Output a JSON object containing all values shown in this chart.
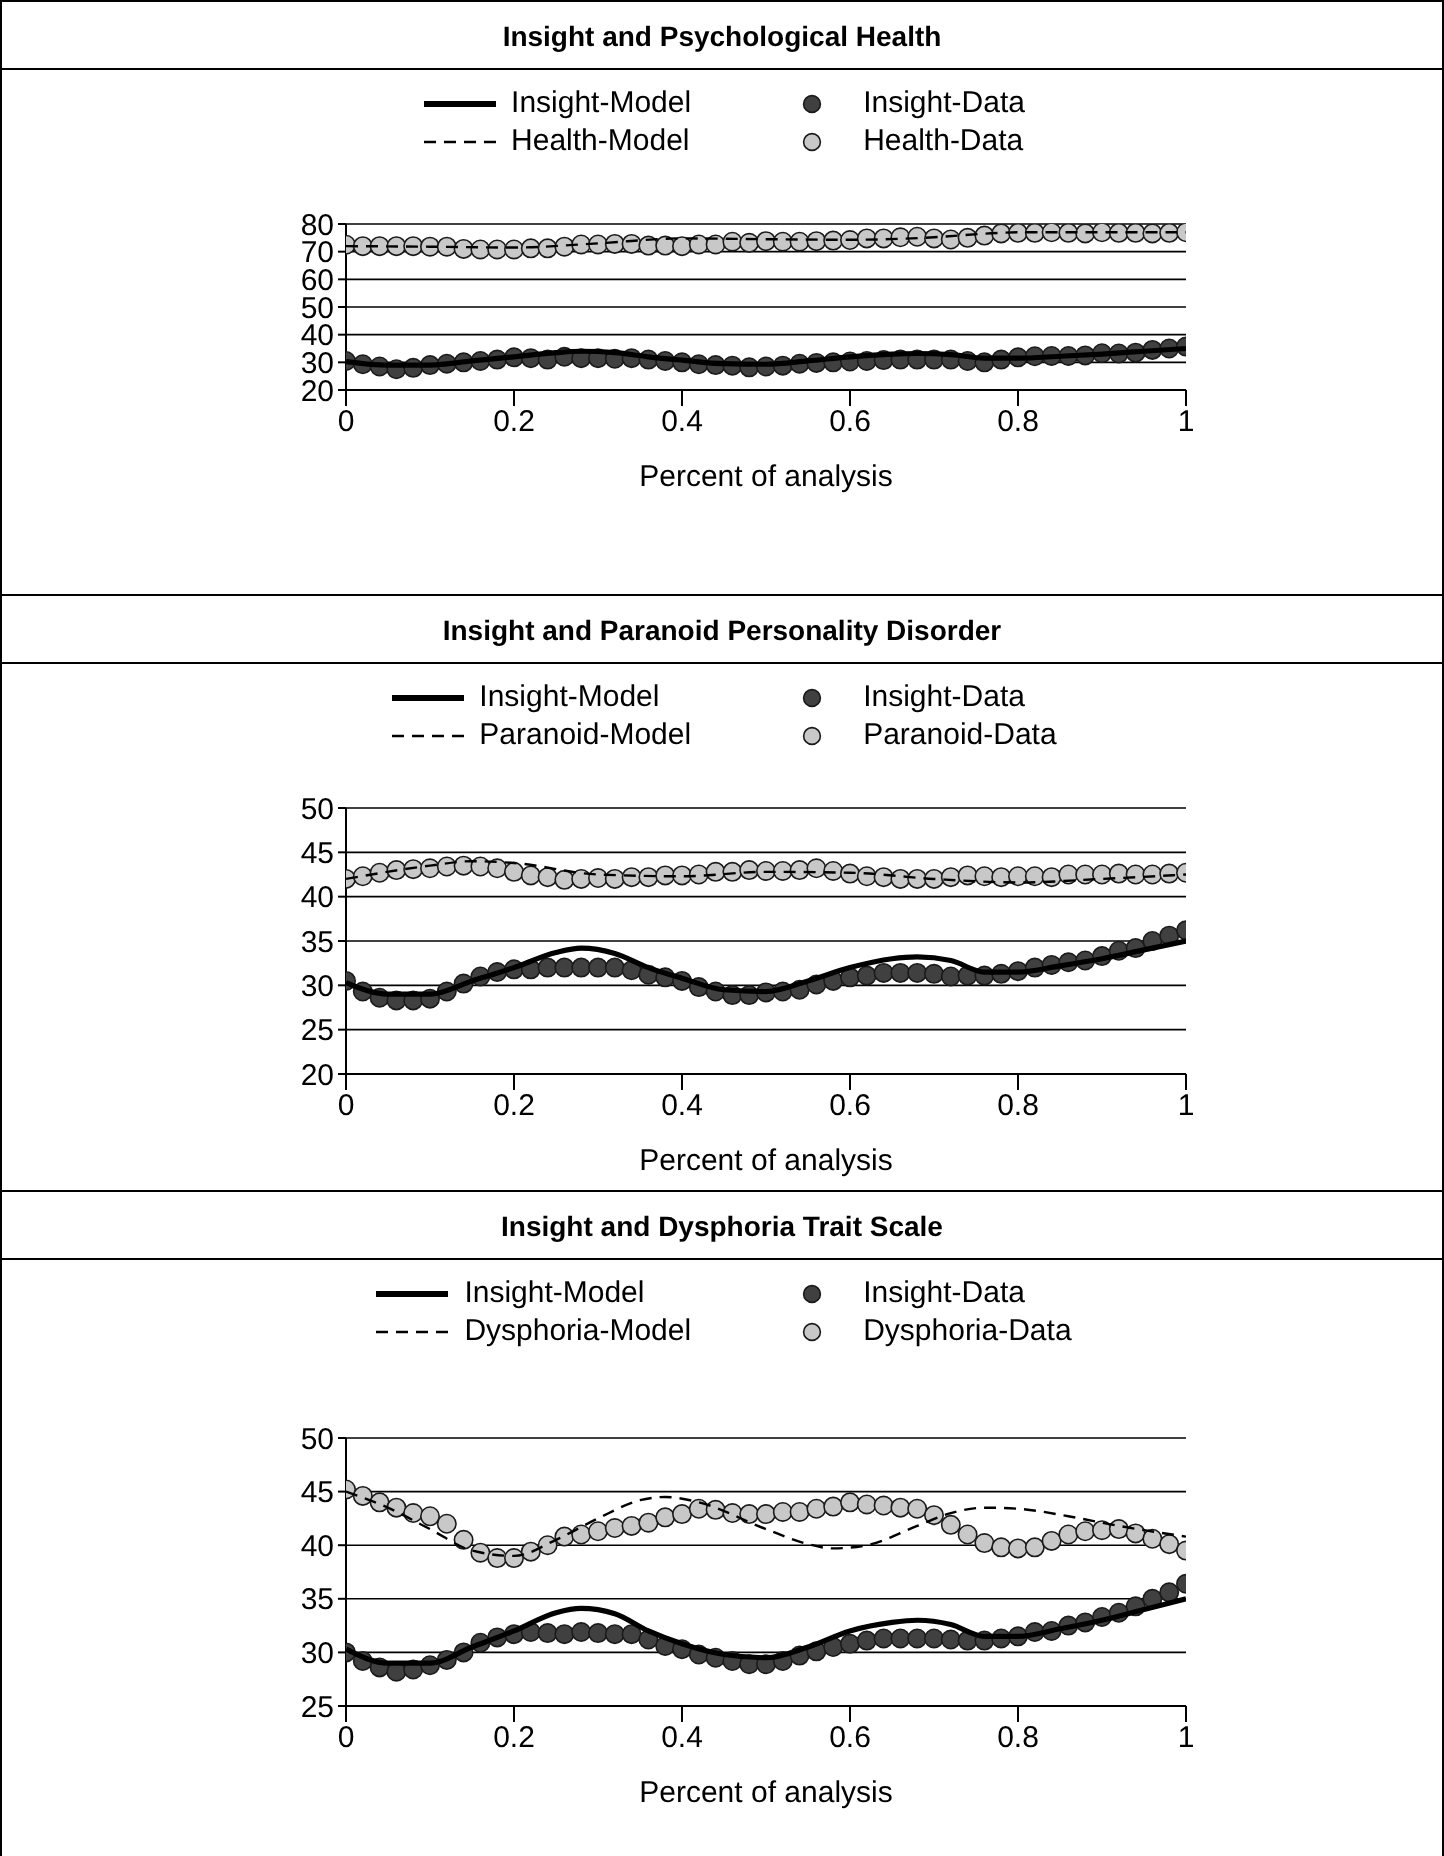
{
  "chart_data": [
    {
      "type": "line",
      "title": "Insight and Psychological Health",
      "xlabel": "Percent of analysis",
      "xlim": [
        0,
        1
      ],
      "xticks": [
        0,
        0.2,
        0.4,
        0.6,
        0.8,
        1
      ],
      "ylim": [
        20,
        80
      ],
      "yticks": [
        20,
        30,
        40,
        50,
        60,
        70,
        80
      ],
      "grid": "y",
      "legend": "top",
      "series": [
        {
          "name": "Insight-Model",
          "type": "line",
          "color": "#000000",
          "line_style": "solid",
          "marker": "none",
          "x": [
            0,
            0.05,
            0.1,
            0.15,
            0.2,
            0.25,
            0.28,
            0.32,
            0.36,
            0.4,
            0.45,
            0.5,
            0.55,
            0.6,
            0.65,
            0.68,
            0.72,
            0.76,
            0.8,
            0.85,
            0.9,
            0.95,
            1
          ],
          "values": [
            30.3,
            29,
            29,
            30.5,
            32,
            33.5,
            34,
            33.5,
            32,
            30.8,
            29.5,
            29.3,
            30.5,
            32,
            33,
            33.2,
            32.8,
            31.5,
            31.5,
            32.2,
            33,
            34,
            35
          ]
        },
        {
          "name": "Insight-Data",
          "type": "scatter",
          "color": "#404040",
          "marker": "circle",
          "x": [
            0,
            0.02,
            0.04,
            0.06,
            0.08,
            0.1,
            0.12,
            0.14,
            0.16,
            0.18,
            0.2,
            0.22,
            0.24,
            0.26,
            0.28,
            0.3,
            0.32,
            0.34,
            0.36,
            0.38,
            0.4,
            0.42,
            0.44,
            0.46,
            0.48,
            0.5,
            0.52,
            0.54,
            0.56,
            0.58,
            0.6,
            0.62,
            0.64,
            0.66,
            0.68,
            0.7,
            0.72,
            0.74,
            0.76,
            0.78,
            0.8,
            0.82,
            0.84,
            0.86,
            0.88,
            0.9,
            0.92,
            0.94,
            0.96,
            0.98,
            1
          ],
          "values": [
            30.5,
            29.3,
            28.5,
            27.5,
            28,
            29,
            29.5,
            30,
            30.5,
            31,
            31.8,
            31.5,
            31,
            32,
            31.5,
            31.5,
            31.3,
            31.5,
            31,
            30.5,
            30,
            29.3,
            29,
            28.8,
            28.2,
            28.5,
            28.8,
            29.5,
            29.8,
            30,
            30.3,
            30.5,
            30.8,
            31,
            31,
            31,
            31,
            30.5,
            30,
            31,
            31.8,
            32.2,
            32.3,
            32.3,
            32.5,
            33.3,
            33.2,
            33.5,
            34.5,
            35,
            35.7
          ]
        },
        {
          "name": "Health-Model",
          "type": "line",
          "color": "#000000",
          "line_style": "dashed",
          "marker": "none",
          "x": [
            0,
            0.1,
            0.2,
            0.3,
            0.4,
            0.5,
            0.6,
            0.7,
            0.76,
            0.8,
            0.9,
            1
          ],
          "values": [
            72,
            71.8,
            71.5,
            73,
            74.8,
            74.5,
            74.3,
            75.2,
            76.5,
            77,
            77,
            77
          ]
        },
        {
          "name": "Health-Data",
          "type": "scatter",
          "color": "#c8c8c8",
          "marker": "circle",
          "x": [
            0,
            0.02,
            0.04,
            0.06,
            0.08,
            0.1,
            0.12,
            0.14,
            0.16,
            0.18,
            0.2,
            0.22,
            0.24,
            0.26,
            0.28,
            0.3,
            0.32,
            0.34,
            0.36,
            0.38,
            0.4,
            0.42,
            0.44,
            0.46,
            0.48,
            0.5,
            0.52,
            0.54,
            0.56,
            0.58,
            0.6,
            0.62,
            0.64,
            0.66,
            0.68,
            0.7,
            0.72,
            0.74,
            0.76,
            0.78,
            0.8,
            0.82,
            0.84,
            0.86,
            0.88,
            0.9,
            0.92,
            0.94,
            0.96,
            0.98,
            1
          ],
          "values": [
            72.5,
            72,
            72,
            72,
            72,
            71.8,
            71.8,
            71,
            70.8,
            70.8,
            70.8,
            71.2,
            71.2,
            71.8,
            72.6,
            72.6,
            72.8,
            72.8,
            72.2,
            72.2,
            72,
            72.6,
            72.6,
            73.6,
            73.2,
            73.8,
            73.6,
            73.6,
            73.8,
            74,
            74.2,
            74.8,
            74.8,
            75.2,
            75.4,
            74.8,
            74.4,
            75,
            75.8,
            76.6,
            76.8,
            76.8,
            77,
            76.8,
            76.6,
            77,
            76.8,
            76.8,
            76.6,
            76.8,
            77
          ]
        }
      ]
    },
    {
      "type": "line",
      "title": "Insight and Paranoid Personality Disorder",
      "xlabel": "Percent of analysis",
      "xlim": [
        0,
        1
      ],
      "xticks": [
        0,
        0.2,
        0.4,
        0.6,
        0.8,
        1
      ],
      "ylim": [
        20,
        50
      ],
      "yticks": [
        20,
        25,
        30,
        35,
        40,
        45,
        50
      ],
      "grid": "y",
      "legend": "top",
      "series": [
        {
          "name": "Insight-Model",
          "type": "line",
          "color": "#000000",
          "line_style": "solid",
          "marker": "none",
          "x": [
            0,
            0.05,
            0.1,
            0.15,
            0.2,
            0.25,
            0.28,
            0.32,
            0.36,
            0.4,
            0.45,
            0.5,
            0.55,
            0.6,
            0.65,
            0.68,
            0.72,
            0.76,
            0.8,
            0.85,
            0.9,
            0.95,
            1
          ],
          "values": [
            30.3,
            29,
            29,
            30.5,
            32,
            33.7,
            34.2,
            33.6,
            32,
            30.8,
            29.5,
            29.3,
            30.5,
            32,
            33,
            33.2,
            32.8,
            31.5,
            31.5,
            32.2,
            33,
            34,
            35
          ]
        },
        {
          "name": "Insight-Data",
          "type": "scatter",
          "color": "#404040",
          "marker": "circle",
          "x": [
            0,
            0.02,
            0.04,
            0.06,
            0.08,
            0.1,
            0.12,
            0.14,
            0.16,
            0.18,
            0.2,
            0.22,
            0.24,
            0.26,
            0.28,
            0.3,
            0.32,
            0.34,
            0.36,
            0.38,
            0.4,
            0.42,
            0.44,
            0.46,
            0.48,
            0.5,
            0.52,
            0.54,
            0.56,
            0.58,
            0.6,
            0.62,
            0.64,
            0.66,
            0.68,
            0.7,
            0.72,
            0.74,
            0.76,
            0.78,
            0.8,
            0.82,
            0.84,
            0.86,
            0.88,
            0.9,
            0.92,
            0.94,
            0.96,
            0.98,
            1
          ],
          "values": [
            30.5,
            29.3,
            28.6,
            28.3,
            28.3,
            28.5,
            29.3,
            30.2,
            31,
            31.5,
            31.8,
            31.8,
            32,
            32,
            32,
            32,
            32,
            31.7,
            31.2,
            30.9,
            30.5,
            29.8,
            29.3,
            28.9,
            28.9,
            29.2,
            29.3,
            29.5,
            30.1,
            30.5,
            30.9,
            31.1,
            31.4,
            31.4,
            31.4,
            31.3,
            31,
            31.1,
            31.1,
            31.3,
            31.6,
            32,
            32.3,
            32.6,
            32.8,
            33.3,
            33.9,
            34.2,
            35,
            35.6,
            36.2
          ]
        },
        {
          "name": "Paranoid-Model",
          "type": "line",
          "color": "#000000",
          "line_style": "dashed",
          "marker": "none",
          "x": [
            0,
            0.1,
            0.15,
            0.2,
            0.3,
            0.4,
            0.5,
            0.6,
            0.7,
            0.8,
            0.9,
            1
          ],
          "values": [
            42,
            43.5,
            44,
            43.8,
            42.5,
            42.3,
            42.8,
            42.7,
            42,
            41.6,
            42,
            42.5
          ]
        },
        {
          "name": "Paranoid-Data",
          "type": "scatter",
          "color": "#c8c8c8",
          "marker": "circle",
          "x": [
            0,
            0.02,
            0.04,
            0.06,
            0.08,
            0.1,
            0.12,
            0.14,
            0.16,
            0.18,
            0.2,
            0.22,
            0.24,
            0.26,
            0.28,
            0.3,
            0.32,
            0.34,
            0.36,
            0.38,
            0.4,
            0.42,
            0.44,
            0.46,
            0.48,
            0.5,
            0.52,
            0.54,
            0.56,
            0.58,
            0.6,
            0.62,
            0.64,
            0.66,
            0.68,
            0.7,
            0.72,
            0.74,
            0.76,
            0.78,
            0.8,
            0.82,
            0.84,
            0.86,
            0.88,
            0.9,
            0.92,
            0.94,
            0.96,
            0.98,
            1
          ],
          "values": [
            42,
            42.3,
            42.7,
            43,
            43.1,
            43.2,
            43.4,
            43.5,
            43.4,
            43.2,
            42.8,
            42.4,
            42.2,
            41.9,
            42,
            42.1,
            42,
            42.2,
            42.2,
            42.4,
            42.4,
            42.5,
            42.8,
            42.8,
            43,
            42.9,
            42.9,
            43,
            43.2,
            42.9,
            42.6,
            42.3,
            42.2,
            42,
            42,
            42,
            42.2,
            42.4,
            42.3,
            42.2,
            42.3,
            42.3,
            42.2,
            42.5,
            42.5,
            42.5,
            42.6,
            42.5,
            42.5,
            42.6,
            42.7
          ]
        }
      ]
    },
    {
      "type": "line",
      "title": "Insight and Dysphoria Trait Scale",
      "xlabel": "Percent of analysis",
      "xlim": [
        0,
        1
      ],
      "xticks": [
        0,
        0.2,
        0.4,
        0.6,
        0.8,
        1
      ],
      "ylim": [
        25,
        50
      ],
      "yticks": [
        25,
        30,
        35,
        40,
        45,
        50
      ],
      "grid": "y",
      "legend": "top",
      "series": [
        {
          "name": "Insight-Model",
          "type": "line",
          "color": "#000000",
          "line_style": "solid",
          "marker": "none",
          "x": [
            0,
            0.05,
            0.1,
            0.15,
            0.2,
            0.25,
            0.28,
            0.32,
            0.36,
            0.4,
            0.45,
            0.5,
            0.55,
            0.6,
            0.65,
            0.68,
            0.72,
            0.76,
            0.8,
            0.85,
            0.9,
            0.95,
            1
          ],
          "values": [
            30.3,
            29,
            29,
            30.5,
            32,
            33.7,
            34.1,
            33.6,
            32,
            30.8,
            29.8,
            29.5,
            30.5,
            32,
            32.8,
            33,
            32.6,
            31.5,
            31.5,
            32.2,
            33,
            34,
            35
          ]
        },
        {
          "name": "Insight-Data",
          "type": "scatter",
          "color": "#404040",
          "marker": "circle",
          "x": [
            0,
            0.02,
            0.04,
            0.06,
            0.08,
            0.1,
            0.12,
            0.14,
            0.16,
            0.18,
            0.2,
            0.22,
            0.24,
            0.26,
            0.28,
            0.3,
            0.32,
            0.34,
            0.36,
            0.38,
            0.4,
            0.42,
            0.44,
            0.46,
            0.48,
            0.5,
            0.52,
            0.54,
            0.56,
            0.58,
            0.6,
            0.62,
            0.64,
            0.66,
            0.68,
            0.7,
            0.72,
            0.74,
            0.76,
            0.78,
            0.8,
            0.82,
            0.84,
            0.86,
            0.88,
            0.9,
            0.92,
            0.94,
            0.96,
            0.98,
            1
          ],
          "values": [
            30,
            29.2,
            28.6,
            28.2,
            28.4,
            28.8,
            29.3,
            30,
            30.9,
            31.4,
            31.7,
            31.9,
            31.8,
            31.7,
            31.9,
            31.8,
            31.7,
            31.7,
            31.2,
            30.6,
            30.3,
            29.8,
            29.5,
            29.2,
            28.9,
            28.9,
            29.2,
            29.7,
            30.1,
            30.5,
            30.8,
            31.1,
            31.3,
            31.3,
            31.3,
            31.3,
            31.2,
            31.1,
            31.1,
            31.3,
            31.5,
            31.9,
            32,
            32.5,
            32.8,
            33.3,
            33.7,
            34.3,
            35,
            35.6,
            36.4
          ]
        },
        {
          "name": "Dysphoria-Model",
          "type": "line",
          "color": "#000000",
          "line_style": "dashed",
          "marker": "none",
          "x": [
            0,
            0.05,
            0.1,
            0.15,
            0.2,
            0.25,
            0.3,
            0.35,
            0.38,
            0.42,
            0.5,
            0.55,
            0.58,
            0.62,
            0.68,
            0.72,
            0.76,
            0.8,
            0.86,
            0.92,
            1
          ],
          "values": [
            45,
            43.5,
            41.5,
            39.5,
            39,
            40.5,
            42.5,
            44.2,
            44.5,
            44,
            41.5,
            40.1,
            39.7,
            40,
            41.8,
            43,
            43.5,
            43.4,
            42.7,
            41.8,
            40.8
          ]
        },
        {
          "name": "Dysphoria-Data",
          "type": "scatter",
          "color": "#c8c8c8",
          "marker": "circle",
          "x": [
            0,
            0.02,
            0.04,
            0.06,
            0.08,
            0.1,
            0.12,
            0.14,
            0.16,
            0.18,
            0.2,
            0.22,
            0.24,
            0.26,
            0.28,
            0.3,
            0.32,
            0.34,
            0.36,
            0.38,
            0.4,
            0.42,
            0.44,
            0.46,
            0.48,
            0.5,
            0.52,
            0.54,
            0.56,
            0.58,
            0.6,
            0.62,
            0.64,
            0.66,
            0.68,
            0.7,
            0.72,
            0.74,
            0.76,
            0.78,
            0.8,
            0.82,
            0.84,
            0.86,
            0.88,
            0.9,
            0.92,
            0.94,
            0.96,
            0.98,
            1
          ],
          "values": [
            45.2,
            44.6,
            44,
            43.5,
            43,
            42.7,
            42,
            40.5,
            39.3,
            38.8,
            38.8,
            39.4,
            40,
            40.8,
            41,
            41.3,
            41.6,
            41.8,
            42.1,
            42.6,
            42.9,
            43.4,
            43.3,
            43,
            42.9,
            42.9,
            43.1,
            43.1,
            43.4,
            43.6,
            44,
            43.8,
            43.7,
            43.5,
            43.4,
            42.8,
            41.9,
            41,
            40.2,
            39.8,
            39.7,
            39.8,
            40.4,
            41,
            41.3,
            41.4,
            41.5,
            41.1,
            40.6,
            40.1,
            39.5
          ]
        }
      ]
    }
  ]
}
